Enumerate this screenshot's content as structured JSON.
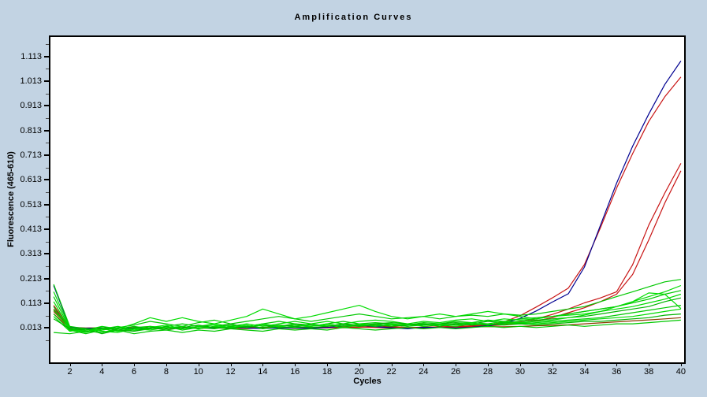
{
  "window": {
    "background": "#c2d3e3",
    "plot_background": "#ffffff",
    "frame_color": "#000000"
  },
  "chart_data": {
    "type": "line",
    "title": "Amplification Curves",
    "xlabel": "Cycles",
    "ylabel": "Fluorescence (465-610)",
    "xlim": [
      0.8,
      40.2
    ],
    "ylim": [
      -0.126,
      1.192
    ],
    "x_ticks": [
      2,
      4,
      6,
      8,
      10,
      12,
      14,
      16,
      18,
      20,
      22,
      24,
      26,
      28,
      30,
      32,
      34,
      36,
      38,
      40
    ],
    "y_ticks": [
      0.013,
      0.113,
      0.213,
      0.313,
      0.413,
      0.513,
      0.613,
      0.713,
      0.813,
      0.913,
      1.013,
      1.113
    ],
    "y_tick_decimals": 3,
    "grid": false,
    "legend": "none",
    "x": [
      1,
      2,
      3,
      4,
      5,
      6,
      7,
      8,
      9,
      10,
      11,
      12,
      13,
      14,
      15,
      16,
      17,
      18,
      19,
      20,
      21,
      22,
      23,
      24,
      25,
      26,
      27,
      28,
      29,
      30,
      31,
      32,
      33,
      34,
      35,
      36,
      37,
      38,
      39,
      40
    ],
    "series": [
      {
        "name": "brown-flat-trace",
        "color": "#8b3a00",
        "values": [
          0.09,
          0.016,
          0.013,
          0.014,
          0.012,
          0.015,
          0.014,
          0.013,
          0.015,
          0.014,
          0.016,
          0.015,
          0.013,
          0.016,
          0.014,
          0.015,
          0.016,
          0.014,
          0.017,
          0.016,
          0.018,
          0.017,
          0.015,
          0.017,
          0.016,
          0.018,
          0.017,
          0.019,
          0.018,
          0.02,
          0.022,
          0.024,
          0.026,
          0.03,
          0.034,
          0.038,
          0.042,
          0.046,
          0.05,
          0.055
        ]
      },
      {
        "name": "red-late-trace-2",
        "color": "#c81414",
        "values": [
          0.07,
          0.013,
          0.011,
          0.012,
          0.014,
          0.011,
          0.013,
          0.012,
          0.014,
          0.012,
          0.013,
          0.014,
          0.012,
          0.015,
          0.013,
          0.014,
          0.012,
          0.014,
          0.015,
          0.017,
          0.015,
          0.013,
          0.015,
          0.014,
          0.016,
          0.018,
          0.02,
          0.022,
          0.026,
          0.032,
          0.042,
          0.055,
          0.075,
          0.095,
          0.12,
          0.15,
          0.23,
          0.37,
          0.52,
          0.65
        ]
      },
      {
        "name": "red-late-trace-1",
        "color": "#c81414",
        "values": [
          0.08,
          0.014,
          0.012,
          0.011,
          0.013,
          0.012,
          0.014,
          0.013,
          0.012,
          0.014,
          0.013,
          0.012,
          0.015,
          0.013,
          0.014,
          0.012,
          0.013,
          0.015,
          0.014,
          0.016,
          0.018,
          0.016,
          0.014,
          0.016,
          0.018,
          0.02,
          0.022,
          0.025,
          0.03,
          0.038,
          0.05,
          0.068,
          0.09,
          0.115,
          0.135,
          0.16,
          0.27,
          0.43,
          0.56,
          0.68
        ]
      },
      {
        "name": "red-early-trace",
        "color": "#c81414",
        "values": [
          0.105,
          0.015,
          0.011,
          0.013,
          0.012,
          0.015,
          0.013,
          0.011,
          0.014,
          0.012,
          0.016,
          0.013,
          0.011,
          0.015,
          0.017,
          0.012,
          0.014,
          0.016,
          0.019,
          0.022,
          0.024,
          0.019,
          0.015,
          0.013,
          0.016,
          0.017,
          0.019,
          0.024,
          0.038,
          0.063,
          0.098,
          0.135,
          0.175,
          0.27,
          0.42,
          0.58,
          0.72,
          0.85,
          0.95,
          1.03
        ]
      },
      {
        "name": "blue-early-trace",
        "color": "#000090",
        "values": [
          0.185,
          0.016,
          0.012,
          0.013,
          0.014,
          0.012,
          0.013,
          0.014,
          0.012,
          0.013,
          0.014,
          0.016,
          0.013,
          0.011,
          0.014,
          0.013,
          0.012,
          0.015,
          0.021,
          0.024,
          0.019,
          0.014,
          0.01,
          0.016,
          0.015,
          0.013,
          0.016,
          0.022,
          0.032,
          0.052,
          0.082,
          0.118,
          0.152,
          0.26,
          0.43,
          0.6,
          0.75,
          0.88,
          1.0,
          1.095
        ]
      },
      {
        "name": "green-trace-1",
        "color": "#00c800",
        "values": [
          0.19,
          0.02,
          0.01,
          0.005,
          0.015,
          0.025,
          0.04,
          0.03,
          0.02,
          0.035,
          0.045,
          0.03,
          0.04,
          0.05,
          0.06,
          0.05,
          0.04,
          0.05,
          0.06,
          0.07,
          0.06,
          0.05,
          0.055,
          0.06,
          0.05,
          0.06,
          0.065,
          0.06,
          0.07,
          0.065,
          0.07,
          0.08,
          0.09,
          0.1,
          0.12,
          0.14,
          0.16,
          0.18,
          0.2,
          0.21
        ]
      },
      {
        "name": "green-trace-2",
        "color": "#00dc00",
        "values": [
          0.16,
          0.015,
          0.005,
          0.02,
          0.01,
          0.03,
          0.055,
          0.04,
          0.055,
          0.04,
          0.03,
          0.045,
          0.06,
          0.09,
          0.07,
          0.05,
          0.06,
          0.075,
          0.09,
          0.105,
          0.08,
          0.06,
          0.05,
          0.06,
          0.07,
          0.06,
          0.07,
          0.08,
          0.07,
          0.06,
          0.05,
          0.06,
          0.07,
          0.08,
          0.09,
          0.1,
          0.12,
          0.14,
          0.16,
          0.185
        ]
      },
      {
        "name": "green-trace-3",
        "color": "#00c800",
        "values": [
          0.14,
          0.01,
          0.0,
          -0.005,
          0.01,
          0.02,
          0.01,
          0.02,
          0.03,
          0.02,
          0.015,
          0.025,
          0.02,
          0.03,
          0.04,
          0.03,
          0.02,
          0.03,
          0.04,
          0.03,
          0.035,
          0.03,
          0.025,
          0.035,
          0.03,
          0.04,
          0.035,
          0.045,
          0.04,
          0.05,
          0.055,
          0.06,
          0.07,
          0.08,
          0.09,
          0.1,
          0.115,
          0.13,
          0.15,
          0.165
        ]
      },
      {
        "name": "green-trace-4",
        "color": "#00dc00",
        "values": [
          0.12,
          0.008,
          -0.005,
          0.01,
          0.02,
          0.005,
          0.015,
          0.025,
          0.01,
          0.02,
          0.03,
          0.02,
          0.03,
          0.02,
          0.03,
          0.04,
          0.03,
          0.04,
          0.03,
          0.04,
          0.045,
          0.04,
          0.03,
          0.04,
          0.035,
          0.045,
          0.05,
          0.04,
          0.05,
          0.045,
          0.05,
          0.06,
          0.065,
          0.07,
          0.08,
          0.09,
          0.1,
          0.115,
          0.13,
          0.15
        ]
      },
      {
        "name": "green-trace-5",
        "color": "#00b400",
        "values": [
          0.1,
          0.005,
          0.01,
          -0.01,
          0.005,
          0.015,
          0.02,
          0.01,
          0.02,
          0.01,
          0.02,
          0.03,
          0.015,
          0.025,
          0.02,
          0.03,
          0.025,
          0.02,
          0.03,
          0.025,
          0.03,
          0.035,
          0.03,
          0.025,
          0.03,
          0.035,
          0.03,
          0.04,
          0.035,
          0.04,
          0.045,
          0.05,
          0.055,
          0.06,
          0.07,
          0.08,
          0.09,
          0.1,
          0.12,
          0.135
        ]
      },
      {
        "name": "green-trace-6",
        "color": "#00dc00",
        "values": [
          0.085,
          0.01,
          0.0,
          0.01,
          0.0,
          0.01,
          0.02,
          0.015,
          0.01,
          0.02,
          0.025,
          0.015,
          0.02,
          0.03,
          0.02,
          0.025,
          0.02,
          0.03,
          0.02,
          0.03,
          0.025,
          0.03,
          0.02,
          0.03,
          0.025,
          0.03,
          0.035,
          0.03,
          0.04,
          0.035,
          0.04,
          0.045,
          0.055,
          0.065,
          0.08,
          0.1,
          0.12,
          0.155,
          0.15,
          0.092
        ]
      },
      {
        "name": "green-trace-7",
        "color": "#00c800",
        "values": [
          0.07,
          0.005,
          -0.01,
          0.005,
          0.015,
          0.0,
          0.01,
          0.02,
          0.005,
          0.015,
          0.01,
          0.02,
          0.015,
          0.025,
          0.015,
          0.02,
          0.03,
          0.02,
          0.025,
          0.02,
          0.03,
          0.025,
          0.02,
          0.025,
          0.03,
          0.025,
          0.03,
          0.025,
          0.035,
          0.03,
          0.035,
          0.04,
          0.045,
          0.05,
          0.055,
          0.065,
          0.075,
          0.085,
          0.095,
          0.105
        ]
      },
      {
        "name": "green-trace-8",
        "color": "#00dc00",
        "values": [
          0.06,
          0.0,
          0.01,
          0.0,
          -0.005,
          0.01,
          0.005,
          0.015,
          0.02,
          0.01,
          0.02,
          0.015,
          0.025,
          0.01,
          0.02,
          0.015,
          0.02,
          0.025,
          0.015,
          0.025,
          0.02,
          0.025,
          0.03,
          0.02,
          0.025,
          0.02,
          0.03,
          0.025,
          0.03,
          0.035,
          0.03,
          0.035,
          0.04,
          0.045,
          0.05,
          0.055,
          0.06,
          0.07,
          0.08,
          0.09
        ]
      },
      {
        "name": "green-trace-9",
        "color": "#00b400",
        "values": [
          0.05,
          0.01,
          0.005,
          0.015,
          0.005,
          0.0,
          0.015,
          0.005,
          0.015,
          0.025,
          0.015,
          0.01,
          0.02,
          0.015,
          0.025,
          0.02,
          0.015,
          0.02,
          0.03,
          0.02,
          0.025,
          0.02,
          0.025,
          0.03,
          0.02,
          0.03,
          0.025,
          0.03,
          0.025,
          0.03,
          0.025,
          0.03,
          0.035,
          0.04,
          0.04,
          0.045,
          0.05,
          0.055,
          0.065,
          0.07
        ]
      },
      {
        "name": "green-trace-10",
        "color": "#00c800",
        "values": [
          -0.005,
          -0.01,
          0.0,
          -0.005,
          0.005,
          -0.01,
          0.0,
          0.005,
          -0.005,
          0.005,
          0.0,
          0.01,
          0.005,
          0.0,
          0.01,
          0.005,
          0.01,
          0.005,
          0.015,
          0.01,
          0.005,
          0.01,
          0.015,
          0.01,
          0.015,
          0.01,
          0.015,
          0.02,
          0.015,
          0.02,
          0.015,
          0.02,
          0.025,
          0.02,
          0.025,
          0.03,
          0.03,
          0.035,
          0.04,
          0.045
        ]
      }
    ]
  }
}
